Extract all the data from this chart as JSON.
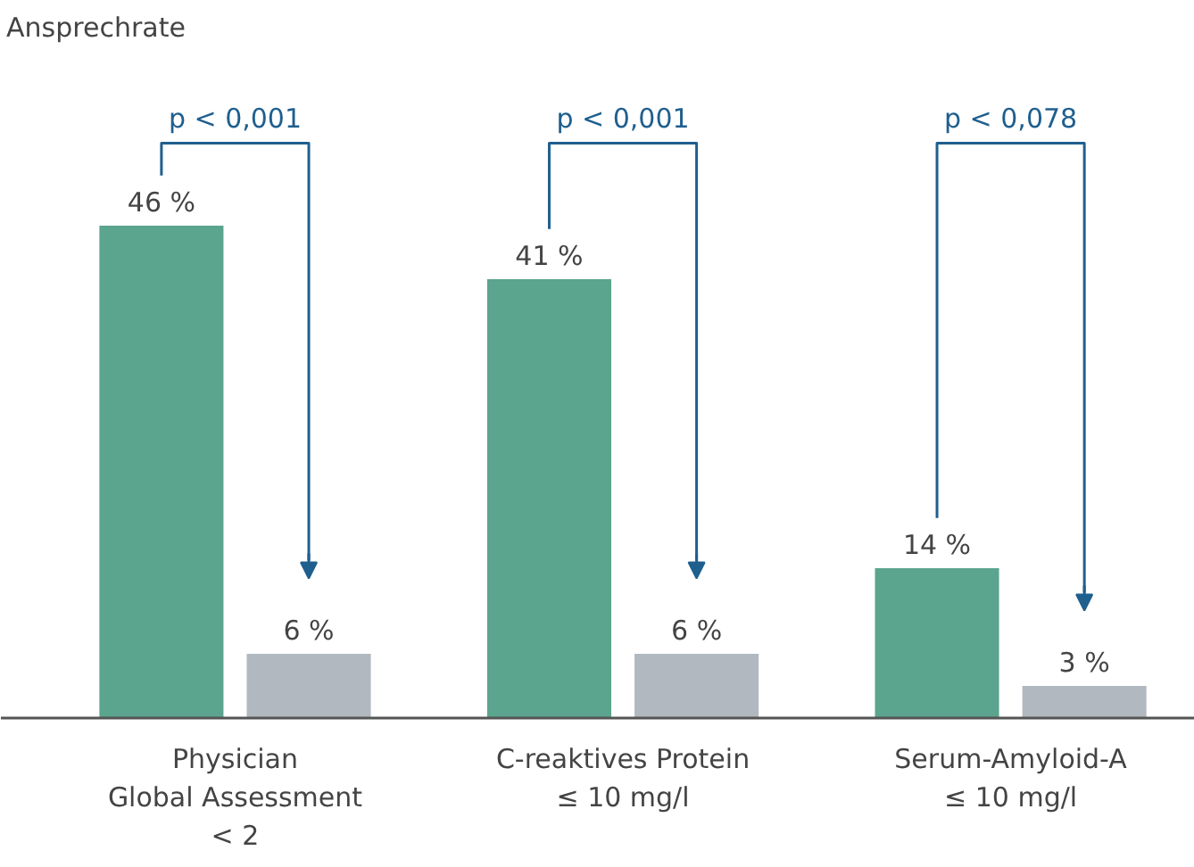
{
  "chart_data": {
    "type": "bar",
    "categories": [
      "Physician\nGlobal Assessment\n< 2",
      "C-reaktives Protein\n≤ 10 mg/l",
      "Serum-Amyloid-A\n≤ 10 mg/l"
    ],
    "series": [
      {
        "color": "#5ba48d",
        "values": [
          46,
          41,
          14
        ],
        "value_labels": [
          "46 %",
          "41 %",
          "14 %"
        ]
      },
      {
        "color": "#b1b8bf",
        "values": [
          6,
          6,
          3
        ],
        "value_labels": [
          "6 %",
          "6 %",
          "3 %"
        ]
      }
    ],
    "annotations": [
      "Ansprechrate",
      "p < 0,001",
      "p < 0,001",
      "p < 0,078"
    ],
    "grid": false,
    "legend": false
  }
}
